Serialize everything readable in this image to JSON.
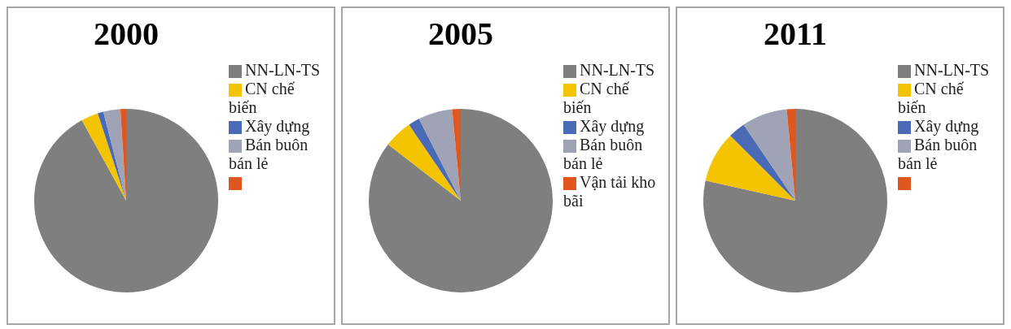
{
  "chart_data": [
    {
      "type": "pie",
      "title": "2000",
      "categories": [
        "NN-LN-TS",
        "CN chế biến",
        "Xây dựng",
        "Bán buôn bán lẻ",
        null
      ],
      "values": [
        92,
        3,
        1,
        3,
        1
      ],
      "colors": [
        "#7f7f7f",
        "#f5c400",
        "#4a6ab5",
        "#a0a3b5",
        "#e0561f"
      ],
      "legend": "right"
    },
    {
      "type": "pie",
      "title": "2005",
      "categories": [
        "NN-LN-TS",
        "CN chế biến",
        "Xây dựng",
        "Bán buôn bán lẻ",
        "Vận tải kho bãi"
      ],
      "values": [
        85.5,
        5,
        2,
        6,
        1.5
      ],
      "colors": [
        "#7f7f7f",
        "#f5c400",
        "#4a6ab5",
        "#a0a3b5",
        "#e0561f"
      ],
      "legend": "right"
    },
    {
      "type": "pie",
      "title": "2011",
      "categories": [
        "NN-LN-TS",
        "CN chế biến",
        "Xây dựng",
        "Bán buôn bán lẻ",
        null
      ],
      "values": [
        78.5,
        9,
        3,
        8,
        1.5
      ],
      "colors": [
        "#7f7f7f",
        "#f5c400",
        "#4a6ab5",
        "#a0a3b5",
        "#e0561f"
      ],
      "legend": "right"
    }
  ]
}
